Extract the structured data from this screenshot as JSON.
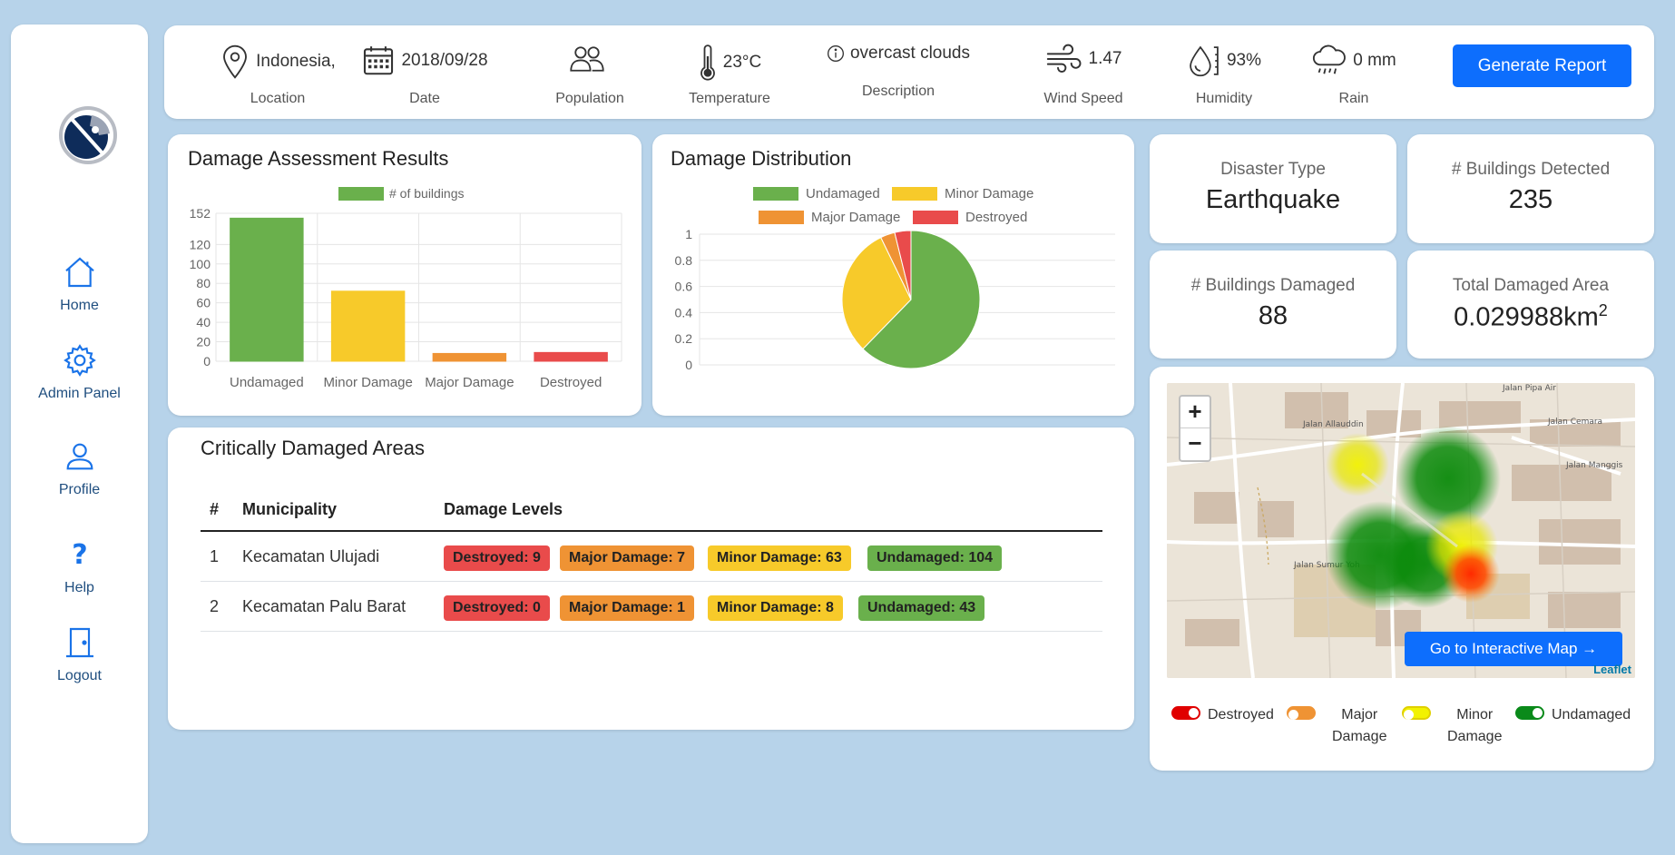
{
  "sidebar": {
    "items": [
      {
        "label": "Home",
        "icon": "home-icon"
      },
      {
        "label": "Admin Panel",
        "icon": "gear-icon"
      },
      {
        "label": "Profile",
        "icon": "user-icon"
      },
      {
        "label": "Help",
        "icon": "question-icon"
      },
      {
        "label": "Logout",
        "icon": "door-icon"
      }
    ]
  },
  "topbar": {
    "location": {
      "value": "Indonesia,",
      "label": "Location"
    },
    "date": {
      "value": "2018/09/28",
      "label": "Date"
    },
    "population": {
      "label": "Population"
    },
    "temperature": {
      "value": "23°C",
      "label": "Temperature"
    },
    "description": {
      "value": "overcast clouds",
      "label": "Description"
    },
    "wind": {
      "value": "1.47",
      "label": "Wind Speed"
    },
    "humidity": {
      "value": "93%",
      "label": "Humidity"
    },
    "rain": {
      "value": "0 mm",
      "label": "Rain"
    },
    "generate_label": "Generate Report"
  },
  "bar_card": {
    "title": "Damage Assessment Results"
  },
  "pie_card": {
    "title": "Damage Distribution"
  },
  "chart_data": [
    {
      "type": "bar",
      "title": "Damage Assessment Results",
      "legend": "# of buildings",
      "categories": [
        "Undamaged",
        "Minor Damage",
        "Major Damage",
        "Destroyed"
      ],
      "values": [
        147,
        72,
        8,
        9
      ],
      "colors": [
        "#6ab04c",
        "#f7ca2a",
        "#ef9334",
        "#e94b4b"
      ],
      "yticks": [
        0,
        20,
        40,
        60,
        80,
        100,
        120,
        152
      ],
      "ylim": [
        0,
        152
      ],
      "grid": true,
      "legend_position": "top"
    },
    {
      "type": "pie",
      "title": "Damage Distribution",
      "categories": [
        "Undamaged",
        "Minor Damage",
        "Major Damage",
        "Destroyed"
      ],
      "values": [
        147,
        72,
        8,
        9
      ],
      "colors": [
        "#6ab04c",
        "#f7ca2a",
        "#ef9334",
        "#e94b4b"
      ],
      "yticks": [
        "0",
        "0.2",
        "0.4",
        "0.6",
        "0.8",
        "1"
      ],
      "grid": true,
      "legend_position": "top"
    }
  ],
  "info": {
    "disaster_type": {
      "label": "Disaster Type",
      "value": "Earthquake"
    },
    "buildings_detected": {
      "label": "# Buildings Detected",
      "value": "235"
    },
    "buildings_damaged": {
      "label": "# Buildings Damaged",
      "value": "88"
    },
    "damaged_area": {
      "label": "Total Damaged Area",
      "value": "0.029988km",
      "sup": "2"
    }
  },
  "table": {
    "title": "Critically Damaged Areas",
    "headers": [
      "#",
      "Municipality",
      "Damage Levels"
    ],
    "rows": [
      {
        "num": "1",
        "municipality": "Kecamatan Ulujadi",
        "destroyed": "Destroyed: 9",
        "major": "Major Damage: 7",
        "minor": "Minor Damage: 63",
        "undamaged": "Undamaged: 104"
      },
      {
        "num": "2",
        "municipality": "Kecamatan Palu Barat",
        "destroyed": "Destroyed: 0",
        "major": "Major Damage: 1",
        "minor": "Minor Damage: 8",
        "undamaged": "Undamaged: 43"
      }
    ]
  },
  "map": {
    "zoom_in": "+",
    "zoom_out": "−",
    "button_label": "Go to Interactive Map →",
    "attribution": "Leaflet",
    "legend": [
      {
        "line1": "Destroyed",
        "line2": "",
        "color": "#e00000"
      },
      {
        "line1": "Major",
        "line2": "Damage",
        "color": "#ef9334"
      },
      {
        "line1": "Minor",
        "line2": "Damage",
        "color": "#f2f200"
      },
      {
        "line1": "Undamaged",
        "line2": "",
        "color": "#0a8a1a"
      }
    ]
  }
}
